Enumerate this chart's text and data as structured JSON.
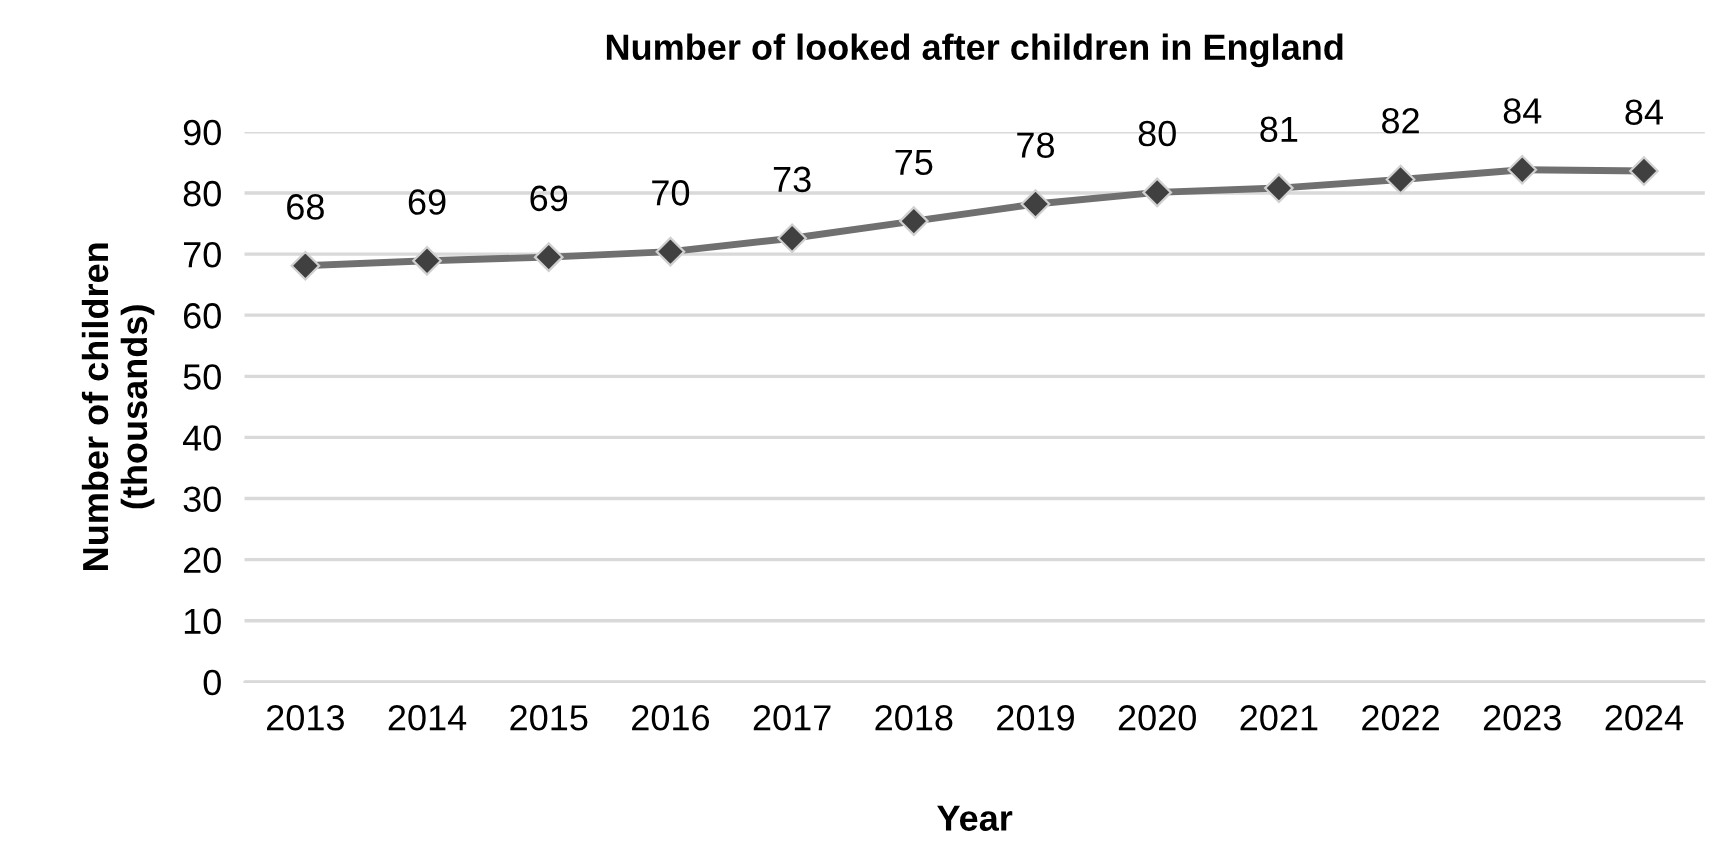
{
  "chart_data": {
    "type": "line",
    "title": "Number of looked after children in England",
    "xlabel": "Year",
    "ylabel": "Number of children\n(thousands)",
    "categories": [
      "2013",
      "2014",
      "2015",
      "2016",
      "2017",
      "2018",
      "2019",
      "2020",
      "2021",
      "2022",
      "2023",
      "2024"
    ],
    "series": [
      {
        "color": "#707070",
        "values": [
          68.1,
          68.9,
          69.5,
          70.4,
          72.6,
          75.4,
          78.2,
          80.1,
          80.8,
          82.2,
          83.8,
          83.6
        ],
        "value_labels": [
          "68",
          "69",
          "69",
          "70",
          "73",
          "75",
          "78",
          "80",
          "81",
          "82",
          "84",
          "84"
        ]
      }
    ],
    "ylim": [
      0,
      90
    ],
    "yticks": [
      0,
      10,
      20,
      30,
      40,
      50,
      60,
      70,
      80,
      90
    ],
    "grid": "y",
    "marker": "diamond",
    "line_style": "solid",
    "legend": false
  }
}
